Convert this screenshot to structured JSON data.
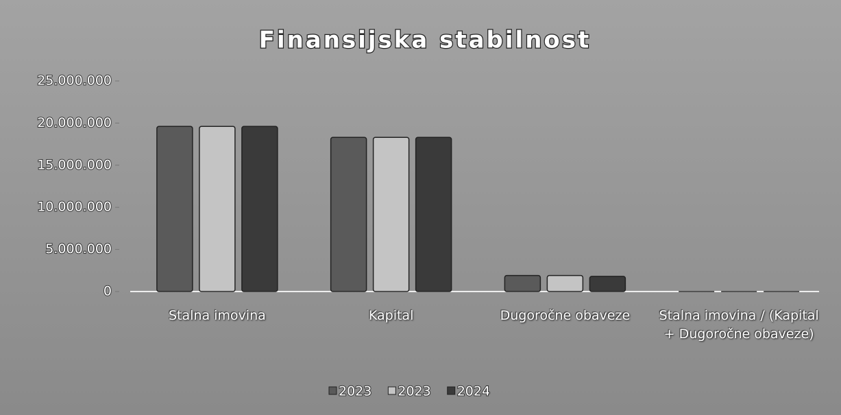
{
  "chart_data": {
    "type": "bar",
    "title": "Finansijska stabilnost",
    "categories": [
      "Stalna imovina",
      "Kapital",
      "Dugoročne obaveze",
      "Stalna imovina / (Kapital + Dugoročne obaveze)"
    ],
    "series": [
      {
        "name": "2023",
        "color": "#5a5a5a",
        "values": [
          19600000,
          18300000,
          1900000,
          1
        ]
      },
      {
        "name": "2023",
        "color": "#c4c4c4",
        "values": [
          19600000,
          18300000,
          1900000,
          1
        ]
      },
      {
        "name": "2024",
        "color": "#3a3a3a",
        "values": [
          19600000,
          18300000,
          1800000,
          1
        ]
      }
    ],
    "ylim": [
      0,
      25000000
    ],
    "yticks": [
      0,
      {
        "value": 5000000,
        "label": "5.000.000"
      },
      {
        "value": 10000000,
        "label": "10.000.000"
      },
      {
        "value": 15000000,
        "label": "15.000.000"
      },
      {
        "value": 20000000,
        "label": "20.000.000"
      },
      {
        "value": 25000000,
        "label": "25.000.000"
      }
    ],
    "legend": "bottom"
  }
}
